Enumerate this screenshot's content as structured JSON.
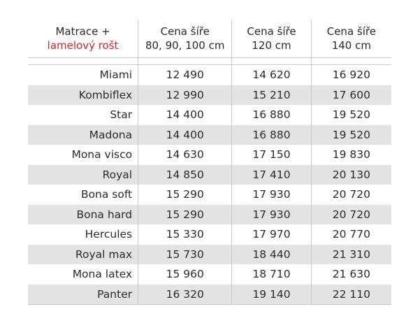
{
  "header": {
    "col0_line1": "Matrace +",
    "col0_line2": "lamelový rošt",
    "col1_line1": "Cena šíře",
    "col1_line2": "80, 90, 100 cm",
    "col2_line1": "Cena šíře",
    "col2_line2": "120 cm",
    "col3_line1": "Cena šíře",
    "col3_line2": "140 cm"
  },
  "colors": {
    "accent": "#d8232a",
    "row_shade": "#e3e3e3",
    "text": "#2b2b2b"
  },
  "rows": [
    {
      "name": "Miami",
      "p1": "12 490",
      "p2": "14 620",
      "p3": "16 920"
    },
    {
      "name": "Kombiflex",
      "p1": "12 990",
      "p2": "15 210",
      "p3": "17 600"
    },
    {
      "name": "Star",
      "p1": "14 400",
      "p2": "16 880",
      "p3": "19 520"
    },
    {
      "name": "Madona",
      "p1": "14 400",
      "p2": "16 880",
      "p3": "19 520"
    },
    {
      "name": "Mona visco",
      "p1": "14 630",
      "p2": "17 150",
      "p3": "19 830"
    },
    {
      "name": "Royal",
      "p1": "14 850",
      "p2": "17 410",
      "p3": "20 130"
    },
    {
      "name": "Bona soft",
      "p1": "15 290",
      "p2": "17 930",
      "p3": "20 720"
    },
    {
      "name": "Bona hard",
      "p1": "15 290",
      "p2": "17 930",
      "p3": "20 720"
    },
    {
      "name": "Hercules",
      "p1": "15 330",
      "p2": "17 970",
      "p3": "20 770"
    },
    {
      "name": "Royal max",
      "p1": "15 730",
      "p2": "18 440",
      "p3": "21 310"
    },
    {
      "name": "Mona latex",
      "p1": "15 960",
      "p2": "18 710",
      "p3": "21 630"
    },
    {
      "name": "Panter",
      "p1": "16 320",
      "p2": "19 140",
      "p3": "22 110"
    }
  ]
}
